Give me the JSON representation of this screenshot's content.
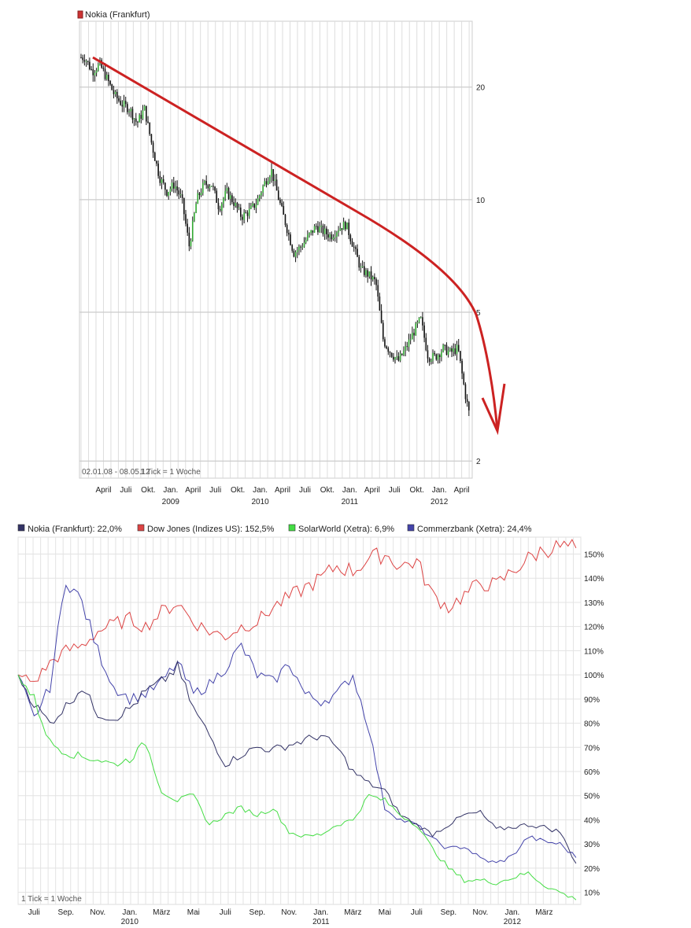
{
  "chart_data": [
    {
      "type": "candlestick",
      "title": "",
      "legend": {
        "placement": "top-left",
        "entries": [
          {
            "name": "Nokia (Frankfurt)",
            "color": "#cc3333"
          }
        ]
      },
      "y_scale": "log",
      "ylim": [
        1.8,
        30
      ],
      "y_ticks": [
        {
          "label": "20",
          "value": 20
        },
        {
          "label": "10",
          "value": 10
        },
        {
          "label": "5",
          "value": 5
        },
        {
          "label": "2",
          "value": 2
        }
      ],
      "x_range_text": "02.01.08 - 08.05.12",
      "tick_note": "1 Tick = 1 Woche",
      "x_month_labels": [
        "April",
        "Juli",
        "Okt.",
        "Jan.",
        "April",
        "Juli",
        "Okt.",
        "Jan.",
        "April",
        "Juli",
        "Okt.",
        "Jan.",
        "April",
        "Juli",
        "Okt.",
        "Jan.",
        "April"
      ],
      "x_year_labels": [
        "2009",
        "2010",
        "2011",
        "2012"
      ],
      "grid": true,
      "annotation": {
        "type": "trend-arrow",
        "color": "#cc2222"
      },
      "series": [
        {
          "name": "Nokia (Frankfurt)",
          "points": [
            [
              "2008-01",
              24
            ],
            [
              "2008-02",
              22
            ],
            [
              "2008-03",
              23
            ],
            [
              "2008-04",
              21
            ],
            [
              "2008-05",
              19
            ],
            [
              "2008-06",
              18
            ],
            [
              "2008-07",
              17.5
            ],
            [
              "2008-08",
              16
            ],
            [
              "2008-09",
              17.5
            ],
            [
              "2008-10",
              14
            ],
            [
              "2008-11",
              11.5
            ],
            [
              "2008-12",
              10.5
            ],
            [
              "2009-01",
              11
            ],
            [
              "2009-02",
              10
            ],
            [
              "2009-03",
              7.5
            ],
            [
              "2009-04",
              10
            ],
            [
              "2009-05",
              11
            ],
            [
              "2009-06",
              11
            ],
            [
              "2009-07",
              9.5
            ],
            [
              "2009-08",
              10.5
            ],
            [
              "2009-09",
              9.8
            ],
            [
              "2009-10",
              9.0
            ],
            [
              "2009-11",
              9.3
            ],
            [
              "2009-12",
              9.8
            ],
            [
              "2010-01",
              11
            ],
            [
              "2010-02",
              12
            ],
            [
              "2010-03",
              10
            ],
            [
              "2010-04",
              8.5
            ],
            [
              "2010-05",
              7.2
            ],
            [
              "2010-06",
              7.5
            ],
            [
              "2010-07",
              8
            ],
            [
              "2010-08",
              8.5
            ],
            [
              "2010-09",
              8.2
            ],
            [
              "2010-10",
              8.0
            ],
            [
              "2010-11",
              8.4
            ],
            [
              "2010-12",
              8.6
            ],
            [
              "2011-01",
              7.5
            ],
            [
              "2011-02",
              6.5
            ],
            [
              "2011-03",
              6.3
            ],
            [
              "2011-04",
              6.0
            ],
            [
              "2011-05",
              4.2
            ],
            [
              "2011-06",
              3.9
            ],
            [
              "2011-07",
              3.7
            ],
            [
              "2011-08",
              4.0
            ],
            [
              "2011-09",
              4.4
            ],
            [
              "2011-10",
              4.8
            ],
            [
              "2011-11",
              3.8
            ],
            [
              "2011-12",
              3.8
            ],
            [
              "2012-01",
              4.0
            ],
            [
              "2012-02",
              3.9
            ],
            [
              "2012-03",
              4.0
            ],
            [
              "2012-04",
              3.0
            ],
            [
              "2012-05",
              2.4
            ]
          ]
        }
      ]
    },
    {
      "type": "line",
      "title": "",
      "legend": {
        "placement": "top",
        "entries": [
          {
            "name": "Nokia (Frankfurt)",
            "value_text": "22,0%",
            "color": "#333366"
          },
          {
            "name": "Dow Jones (Indizes US)",
            "value_text": "152,5%",
            "color": "#dd4444"
          },
          {
            "name": "SolarWorld (Xetra)",
            "value_text": "6,9%",
            "color": "#44dd44"
          },
          {
            "name": "Commerzbank (Xetra)",
            "value_text": "24,4%",
            "color": "#4444aa"
          }
        ]
      },
      "ylim": [
        5,
        157
      ],
      "y_ticks": [
        "10%",
        "20%",
        "30%",
        "40%",
        "50%",
        "60%",
        "70%",
        "80%",
        "90%",
        "100%",
        "110%",
        "120%",
        "130%",
        "140%",
        "150%"
      ],
      "tick_note": "1 Tick = 1 Woche",
      "x_month_labels": [
        "Juli",
        "Sep.",
        "Nov.",
        "Jan.",
        "März",
        "Mai",
        "Juli",
        "Sep.",
        "Nov.",
        "Jan.",
        "März",
        "Mai",
        "Juli",
        "Sep.",
        "Nov.",
        "Jan.",
        "März"
      ],
      "x_year_labels": [
        "2010",
        "2011",
        "2012"
      ],
      "grid": true,
      "series": [
        {
          "name": "Dow Jones (Indizes US)",
          "points": [
            [
              "2009-06",
              100
            ],
            [
              "2009-07",
              97
            ],
            [
              "2009-08",
              105
            ],
            [
              "2009-09",
              110
            ],
            [
              "2009-10",
              112
            ],
            [
              "2009-11",
              118
            ],
            [
              "2009-12",
              121
            ],
            [
              "2010-01",
              123
            ],
            [
              "2010-02",
              120
            ],
            [
              "2010-03",
              126
            ],
            [
              "2010-04",
              130
            ],
            [
              "2010-05",
              122
            ],
            [
              "2010-06",
              118
            ],
            [
              "2010-07",
              116
            ],
            [
              "2010-08",
              120
            ],
            [
              "2010-09",
              122
            ],
            [
              "2010-10",
              128
            ],
            [
              "2010-11",
              132
            ],
            [
              "2010-12",
              136
            ],
            [
              "2011-01",
              140
            ],
            [
              "2011-02",
              145
            ],
            [
              "2011-03",
              143
            ],
            [
              "2011-04",
              148
            ],
            [
              "2011-05",
              150
            ],
            [
              "2011-06",
              145
            ],
            [
              "2011-07",
              147
            ],
            [
              "2011-08",
              133
            ],
            [
              "2011-09",
              128
            ],
            [
              "2011-10",
              133
            ],
            [
              "2011-11",
              138
            ],
            [
              "2011-12",
              137
            ],
            [
              "2012-01",
              143
            ],
            [
              "2012-02",
              148
            ],
            [
              "2012-03",
              152
            ],
            [
              "2012-04",
              153
            ],
            [
              "2012-05",
              152.5
            ]
          ]
        },
        {
          "name": "Commerzbank (Xetra)",
          "points": [
            [
              "2009-06",
              100
            ],
            [
              "2009-07",
              82
            ],
            [
              "2009-08",
              95
            ],
            [
              "2009-09",
              140
            ],
            [
              "2009-10",
              130
            ],
            [
              "2009-11",
              110
            ],
            [
              "2009-12",
              95
            ],
            [
              "2010-01",
              90
            ],
            [
              "2010-02",
              92
            ],
            [
              "2010-03",
              97
            ],
            [
              "2010-04",
              105
            ],
            [
              "2010-05",
              92
            ],
            [
              "2010-06",
              96
            ],
            [
              "2010-07",
              103
            ],
            [
              "2010-08",
              112
            ],
            [
              "2010-09",
              100
            ],
            [
              "2010-10",
              97
            ],
            [
              "2010-11",
              105
            ],
            [
              "2010-12",
              92
            ],
            [
              "2011-01",
              89
            ],
            [
              "2011-02",
              92
            ],
            [
              "2011-03",
              100
            ],
            [
              "2011-04",
              78
            ],
            [
              "2011-05",
              45
            ],
            [
              "2011-06",
              40
            ],
            [
              "2011-07",
              38
            ],
            [
              "2011-08",
              32
            ],
            [
              "2011-09",
              28
            ],
            [
              "2011-10",
              29
            ],
            [
              "2011-11",
              24
            ],
            [
              "2011-12",
              22
            ],
            [
              "2012-01",
              25
            ],
            [
              "2012-02",
              33
            ],
            [
              "2012-03",
              31
            ],
            [
              "2012-04",
              30
            ],
            [
              "2012-05",
              24.4
            ]
          ]
        },
        {
          "name": "Nokia (Frankfurt)",
          "points": [
            [
              "2009-06",
              100
            ],
            [
              "2009-07",
              88
            ],
            [
              "2009-08",
              80
            ],
            [
              "2009-09",
              87
            ],
            [
              "2009-10",
              95
            ],
            [
              "2009-11",
              84
            ],
            [
              "2009-12",
              82
            ],
            [
              "2010-01",
              86
            ],
            [
              "2010-02",
              93
            ],
            [
              "2010-03",
              97
            ],
            [
              "2010-04",
              103
            ],
            [
              "2010-05",
              86
            ],
            [
              "2010-06",
              75
            ],
            [
              "2010-07",
              63
            ],
            [
              "2010-08",
              67
            ],
            [
              "2010-09",
              70
            ],
            [
              "2010-10",
              69
            ],
            [
              "2010-11",
              71
            ],
            [
              "2010-12",
              73
            ],
            [
              "2011-01",
              75
            ],
            [
              "2011-02",
              70
            ],
            [
              "2011-03",
              60
            ],
            [
              "2011-04",
              55
            ],
            [
              "2011-05",
              52
            ],
            [
              "2011-06",
              42
            ],
            [
              "2011-07",
              38
            ],
            [
              "2011-08",
              34
            ],
            [
              "2011-09",
              38
            ],
            [
              "2011-10",
              42
            ],
            [
              "2011-11",
              43
            ],
            [
              "2011-12",
              36
            ],
            [
              "2012-01",
              37
            ],
            [
              "2012-02",
              38
            ],
            [
              "2012-03",
              37
            ],
            [
              "2012-04",
              35
            ],
            [
              "2012-05",
              22
            ]
          ]
        },
        {
          "name": "SolarWorld (Xetra)",
          "points": [
            [
              "2009-06",
              100
            ],
            [
              "2009-07",
              90
            ],
            [
              "2009-08",
              72
            ],
            [
              "2009-09",
              68
            ],
            [
              "2009-10",
              66
            ],
            [
              "2009-11",
              65
            ],
            [
              "2009-12",
              63
            ],
            [
              "2010-01",
              65
            ],
            [
              "2010-02",
              72
            ],
            [
              "2010-03",
              52
            ],
            [
              "2010-04",
              48
            ],
            [
              "2010-05",
              50
            ],
            [
              "2010-06",
              38
            ],
            [
              "2010-07",
              42
            ],
            [
              "2010-08",
              45
            ],
            [
              "2010-09",
              42
            ],
            [
              "2010-10",
              45
            ],
            [
              "2010-11",
              35
            ],
            [
              "2010-12",
              33
            ],
            [
              "2011-01",
              34
            ],
            [
              "2011-02",
              38
            ],
            [
              "2011-03",
              40
            ],
            [
              "2011-04",
              50
            ],
            [
              "2011-05",
              48
            ],
            [
              "2011-06",
              42
            ],
            [
              "2011-07",
              38
            ],
            [
              "2011-08",
              28
            ],
            [
              "2011-09",
              20
            ],
            [
              "2011-10",
              15
            ],
            [
              "2011-11",
              15
            ],
            [
              "2011-12",
              14
            ],
            [
              "2012-01",
              16
            ],
            [
              "2012-02",
              18
            ],
            [
              "2012-03",
              13
            ],
            [
              "2012-04",
              10
            ],
            [
              "2012-05",
              6.9
            ]
          ]
        }
      ]
    }
  ]
}
